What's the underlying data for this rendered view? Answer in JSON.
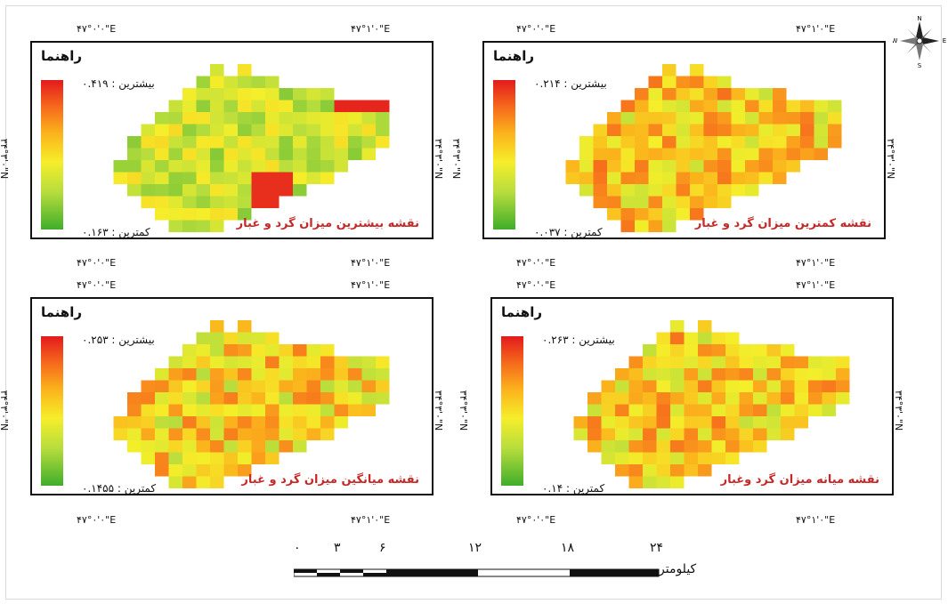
{
  "north_arrow": {
    "n": "N",
    "s": "S",
    "e": "E",
    "w": "W",
    "icon": "compass-rose-icon"
  },
  "coords": {
    "top_left": "۴۷°۰'۰\"E",
    "top_right": "۴۷°۱'۰\"E",
    "lat": "۳۴°۳'۰\"N"
  },
  "panels": [
    {
      "legend_title": "راهنما",
      "max_label": "بیشترین : ۰.۴۱۹",
      "min_label": "کمترین : ۰.۱۶۳",
      "map_title": "نقشه بیشترین میزان گرد و غبار",
      "bias": 0.15
    },
    {
      "legend_title": "راهنما",
      "max_label": "بیشترین : ۰.۲۱۴",
      "min_label": "کمترین : ۰.۰۳۷",
      "map_title": "نقشه کمترین میزان گرد و غبار",
      "bias": 0.55
    },
    {
      "legend_title": "راهنما",
      "max_label": "بیشترین : ۰.۲۵۳",
      "min_label": "کمترین : ۰.۱۴۵۵",
      "map_title": "نقشه میانگین میزان گرد و غبار",
      "bias": 0.5
    },
    {
      "legend_title": "راهنما",
      "max_label": "بیشترین : ۰.۲۶۳",
      "min_label": "کمترین : ۰.۱۴",
      "map_title": "نقشه میانه میزان گرد وغبار",
      "bias": 0.55
    }
  ],
  "scale": {
    "labels": [
      "۰",
      "۳",
      "۶",
      "۱۲",
      "۱۸",
      "۲۴"
    ],
    "unit": "کیلومتر"
  },
  "colors": {
    "high": "#e31a1c",
    "mid": "#f5ee2a",
    "low": "#3fae2a"
  }
}
